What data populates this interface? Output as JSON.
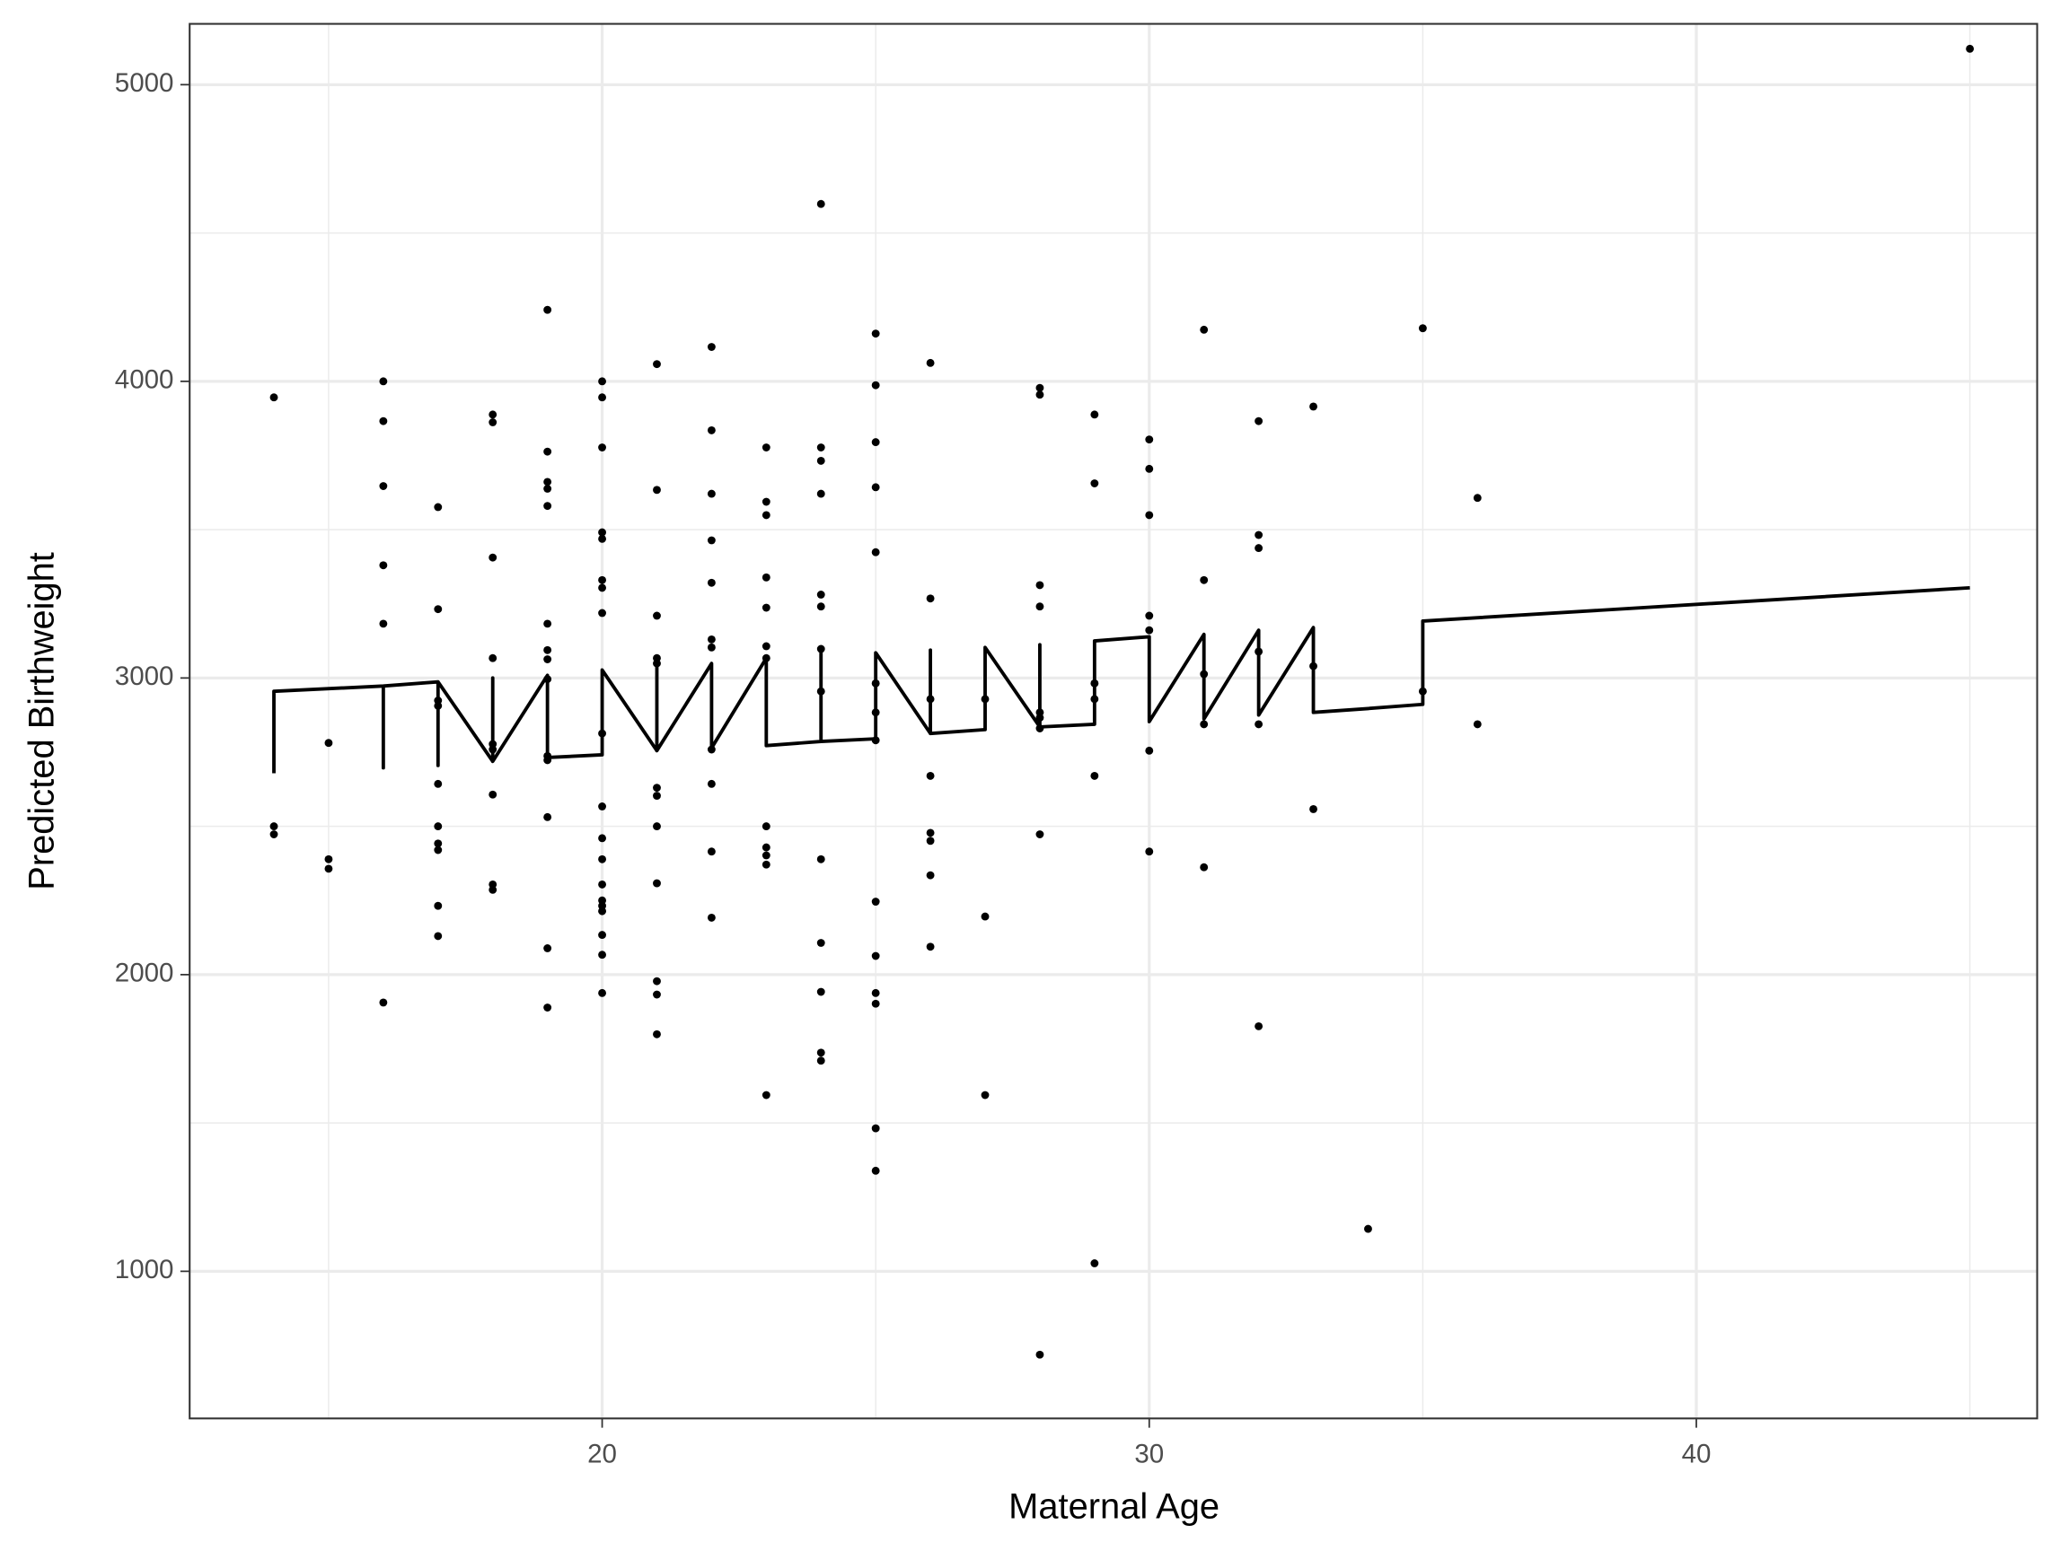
{
  "chart_data": {
    "type": "scatter",
    "x_label": "Maternal Age",
    "y_label": "Predicted Birthweight",
    "xlim": [
      12.46,
      46.23
    ],
    "ylim": [
      504,
      5205
    ],
    "xticks": [
      20,
      30,
      40
    ],
    "yticks": [
      1000,
      2000,
      3000,
      4000,
      5000
    ],
    "minor_xticks": [
      15,
      25,
      35,
      45
    ],
    "minor_yticks": [
      1500,
      2500,
      3500,
      4500
    ],
    "grid": true,
    "series": [
      {
        "type": "scatter",
        "color": "#000000",
        "x": [
          14,
          14,
          14,
          15,
          15,
          15,
          16,
          16,
          16,
          16,
          16,
          16,
          17,
          17,
          17,
          17,
          17,
          17,
          17,
          17,
          17,
          17,
          18,
          18,
          18,
          18,
          18,
          18,
          18,
          18,
          18,
          19,
          19,
          19,
          19,
          19,
          19,
          19,
          19,
          19,
          19,
          19,
          19,
          19,
          19,
          20,
          20,
          20,
          20,
          20,
          20,
          20,
          20,
          20,
          20,
          20,
          20,
          20,
          20,
          20,
          20,
          20,
          20,
          20,
          21,
          21,
          21,
          21,
          21,
          21,
          21,
          21,
          21,
          21,
          21,
          21,
          22,
          22,
          22,
          22,
          22,
          22,
          22,
          22,
          22,
          22,
          22,
          23,
          23,
          23,
          23,
          23,
          23,
          23,
          23,
          23,
          23,
          23,
          23,
          24,
          24,
          24,
          24,
          24,
          24,
          24,
          24,
          24,
          24,
          24,
          24,
          24,
          25,
          25,
          25,
          25,
          25,
          25,
          25,
          25,
          25,
          25,
          25,
          25,
          25,
          25,
          26,
          26,
          26,
          26,
          26,
          26,
          26,
          26,
          27,
          27,
          27,
          28,
          28,
          28,
          28,
          28,
          28,
          28,
          28,
          28,
          29,
          29,
          29,
          29,
          29,
          29,
          30,
          30,
          30,
          30,
          30,
          30,
          30,
          31,
          31,
          31,
          31,
          31,
          32,
          32,
          32,
          32,
          32,
          32,
          33,
          33,
          33,
          34,
          35,
          35,
          36,
          36,
          45
        ],
        "values": [
          3946,
          2500,
          2473,
          2781,
          2389,
          2357,
          4000,
          3866,
          3647,
          3380,
          3183,
          1906,
          3576,
          3232,
          2924,
          2906,
          2643,
          2500,
          2442,
          2420,
          2232,
          2130,
          3888,
          3862,
          3406,
          3067,
          2777,
          2759,
          2607,
          2304,
          2286,
          4241,
          3763,
          3661,
          3638,
          3580,
          3183,
          3094,
          3063,
          2996,
          2737,
          2723,
          2531,
          2089,
          1889,
          4000,
          3946,
          3777,
          3491,
          3469,
          3330,
          3304,
          3219,
          2813,
          2567,
          2460,
          2389,
          2304,
          2250,
          2232,
          2214,
          2134,
          2067,
          1938,
          4058,
          3634,
          3210,
          3067,
          3049,
          2630,
          2603,
          2500,
          2308,
          1978,
          1933,
          1799,
          4116,
          3835,
          3621,
          3464,
          3321,
          3130,
          3103,
          2759,
          2643,
          2415,
          2192,
          3777,
          3594,
          3549,
          3339,
          3237,
          3107,
          3067,
          2500,
          2429,
          2402,
          2371,
          1594,
          4598,
          3777,
          3732,
          3621,
          3281,
          3241,
          3098,
          2955,
          2389,
          2107,
          1942,
          1737,
          1710,
          4161,
          3987,
          3795,
          3643,
          3424,
          2982,
          2884,
          2790,
          2246,
          2063,
          1938,
          1902,
          1482,
          1339,
          4062,
          3268,
          2929,
          2670,
          2478,
          2451,
          2335,
          2094,
          2929,
          2196,
          1594,
          3978,
          3955,
          3313,
          3241,
          2884,
          2866,
          2830,
          2473,
          719,
          3888,
          3656,
          2982,
          2929,
          2670,
          1027,
          3804,
          3705,
          3549,
          3210,
          3161,
          2755,
          2415,
          4174,
          3330,
          3013,
          2844,
          2362,
          3866,
          3482,
          3438,
          3089,
          2844,
          1826,
          3915,
          3040,
          2558,
          1143,
          4179,
          2955,
          3607,
          2844,
          5121
        ]
      },
      {
        "type": "line",
        "color": "#000000",
        "x": [
          14,
          14,
          16,
          16,
          16,
          17,
          17,
          17,
          18,
          18,
          18,
          19,
          19,
          20,
          20,
          21,
          21,
          21,
          22,
          22,
          23,
          23,
          24,
          24,
          24,
          25,
          25,
          26,
          26,
          26,
          27,
          27,
          28,
          28,
          28,
          29,
          29,
          30,
          30,
          31,
          31,
          32,
          32,
          33,
          33,
          34,
          35,
          35,
          45
        ],
        "values": [
          2679,
          2955,
          2973,
          2697,
          2973,
          2987,
          2705,
          2987,
          2719,
          3000,
          2719,
          3009,
          2732,
          2741,
          3027,
          2755,
          3054,
          2755,
          3049,
          2764,
          3067,
          2772,
          2786,
          3098,
          2786,
          2795,
          3085,
          2813,
          3094,
          2813,
          2826,
          3103,
          2835,
          3112,
          2835,
          2844,
          3125,
          3139,
          2853,
          3147,
          2862,
          3161,
          2875,
          3170,
          2884,
          2897,
          2911,
          3192,
          3304
        ]
      }
    ]
  }
}
